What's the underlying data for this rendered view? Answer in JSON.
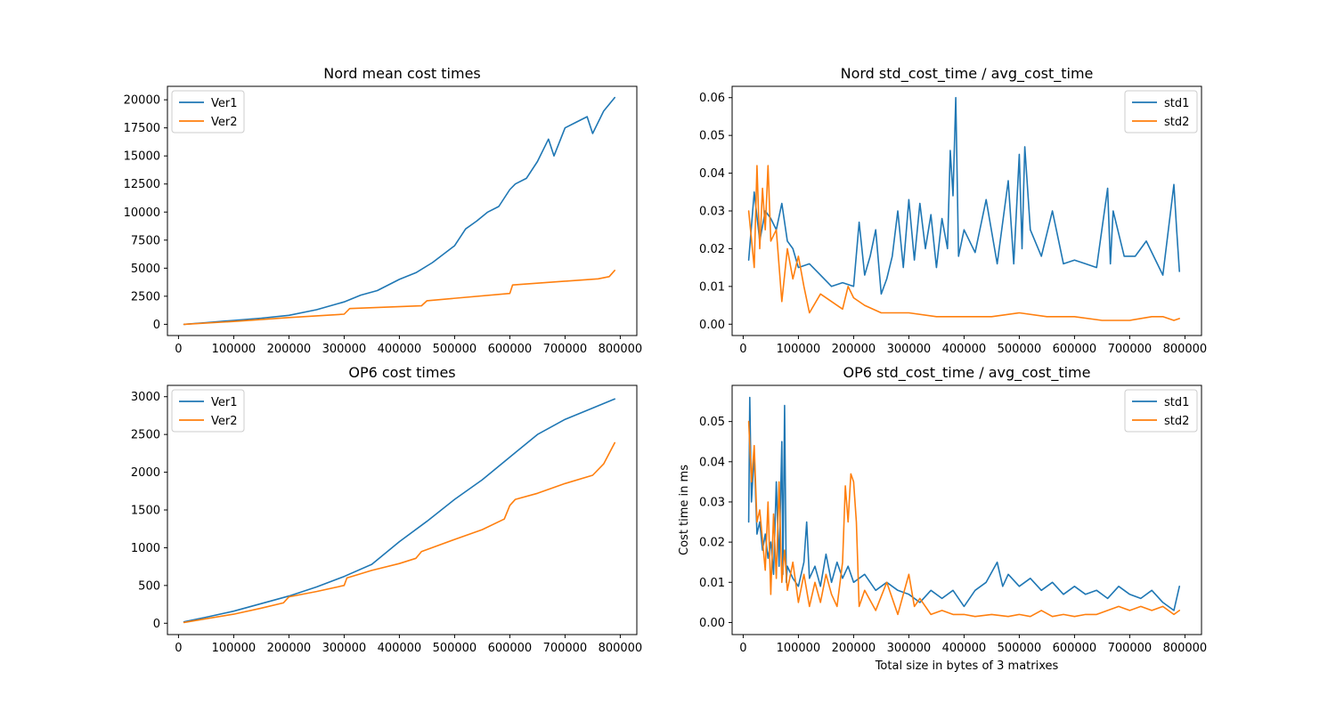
{
  "colors": {
    "series1": "#1f77b4",
    "series2": "#ff7f0e",
    "axis": "#000000",
    "legend_border": "#cccccc"
  },
  "chart_data": [
    {
      "type": "line",
      "title": "Nord mean cost times",
      "xlabel": "",
      "ylabel": "",
      "xlim": [
        -20000,
        830000
      ],
      "ylim": [
        -1000,
        21200
      ],
      "xticks": [
        0,
        100000,
        200000,
        300000,
        400000,
        500000,
        600000,
        700000,
        800000
      ],
      "yticks": [
        0,
        2500,
        5000,
        7500,
        10000,
        12500,
        15000,
        17500,
        20000
      ],
      "xtick_labels": [
        "0",
        "100000",
        "200000",
        "300000",
        "400000",
        "500000",
        "600000",
        "700000",
        "800000"
      ],
      "ytick_labels": [
        "0",
        "2500",
        "5000",
        "7500",
        "10000",
        "12500",
        "15000",
        "17500",
        "20000"
      ],
      "legend": "top-left",
      "grid": false,
      "series": [
        {
          "name": "Ver1",
          "color": "#1f77b4",
          "x": [
            10000,
            50000,
            100000,
            150000,
            200000,
            250000,
            300000,
            330000,
            360000,
            400000,
            430000,
            460000,
            500000,
            520000,
            540000,
            560000,
            580000,
            600000,
            610000,
            630000,
            650000,
            670000,
            680000,
            700000,
            720000,
            740000,
            750000,
            770000,
            790000
          ],
          "y": [
            0,
            150,
            350,
            550,
            800,
            1300,
            2000,
            2600,
            3000,
            4000,
            4600,
            5500,
            7000,
            8500,
            9200,
            10000,
            10500,
            12000,
            12500,
            13000,
            14500,
            16500,
            15000,
            17500,
            18000,
            18500,
            17000,
            19000,
            20200
          ]
        },
        {
          "name": "Ver2",
          "color": "#ff7f0e",
          "x": [
            10000,
            100000,
            200000,
            300000,
            310000,
            440000,
            450000,
            600000,
            605000,
            760000,
            780000,
            790000
          ],
          "y": [
            0,
            250,
            600,
            900,
            1400,
            1650,
            2100,
            2750,
            3500,
            4050,
            4250,
            4800
          ]
        }
      ]
    },
    {
      "type": "line",
      "title": "Nord std_cost_time / avg_cost_time",
      "xlabel": "",
      "ylabel": "",
      "xlim": [
        -20000,
        830000
      ],
      "ylim": [
        -0.003,
        0.063
      ],
      "xticks": [
        0,
        100000,
        200000,
        300000,
        400000,
        500000,
        600000,
        700000,
        800000
      ],
      "yticks": [
        0.0,
        0.01,
        0.02,
        0.03,
        0.04,
        0.05,
        0.06
      ],
      "xtick_labels": [
        "0",
        "100000",
        "200000",
        "300000",
        "400000",
        "500000",
        "600000",
        "700000",
        "800000"
      ],
      "ytick_labels": [
        "0.00",
        "0.01",
        "0.02",
        "0.03",
        "0.04",
        "0.05",
        "0.06"
      ],
      "legend": "top-right",
      "grid": false,
      "series": [
        {
          "name": "std1",
          "color": "#1f77b4",
          "x": [
            10000,
            20000,
            30000,
            40000,
            50000,
            60000,
            70000,
            80000,
            90000,
            100000,
            120000,
            140000,
            160000,
            180000,
            200000,
            210000,
            220000,
            230000,
            240000,
            250000,
            260000,
            270000,
            280000,
            290000,
            300000,
            310000,
            320000,
            330000,
            340000,
            350000,
            360000,
            370000,
            375000,
            380000,
            385000,
            390000,
            400000,
            420000,
            440000,
            460000,
            480000,
            490000,
            500000,
            505000,
            510000,
            520000,
            540000,
            560000,
            580000,
            600000,
            620000,
            640000,
            660000,
            665000,
            670000,
            690000,
            710000,
            730000,
            760000,
            780000,
            785000,
            790000
          ],
          "y": [
            0.017,
            0.035,
            0.022,
            0.03,
            0.028,
            0.025,
            0.032,
            0.022,
            0.02,
            0.015,
            0.016,
            0.013,
            0.01,
            0.011,
            0.01,
            0.027,
            0.013,
            0.018,
            0.025,
            0.008,
            0.012,
            0.018,
            0.03,
            0.015,
            0.033,
            0.017,
            0.032,
            0.02,
            0.029,
            0.015,
            0.028,
            0.02,
            0.046,
            0.034,
            0.06,
            0.018,
            0.025,
            0.019,
            0.033,
            0.016,
            0.038,
            0.016,
            0.045,
            0.02,
            0.047,
            0.025,
            0.018,
            0.03,
            0.016,
            0.017,
            0.016,
            0.015,
            0.036,
            0.016,
            0.03,
            0.018,
            0.018,
            0.022,
            0.013,
            0.037,
            0.025,
            0.014
          ]
        },
        {
          "name": "std2",
          "color": "#ff7f0e",
          "x": [
            10000,
            20000,
            25000,
            30000,
            35000,
            40000,
            45000,
            50000,
            60000,
            70000,
            80000,
            90000,
            100000,
            110000,
            120000,
            140000,
            160000,
            180000,
            190000,
            200000,
            220000,
            250000,
            300000,
            350000,
            400000,
            450000,
            500000,
            550000,
            600000,
            650000,
            700000,
            740000,
            760000,
            780000,
            790000
          ],
          "y": [
            0.03,
            0.015,
            0.042,
            0.02,
            0.036,
            0.025,
            0.042,
            0.022,
            0.025,
            0.006,
            0.02,
            0.012,
            0.018,
            0.01,
            0.003,
            0.008,
            0.006,
            0.004,
            0.01,
            0.007,
            0.005,
            0.003,
            0.003,
            0.002,
            0.002,
            0.002,
            0.003,
            0.002,
            0.002,
            0.001,
            0.001,
            0.002,
            0.002,
            0.001,
            0.0015
          ]
        }
      ]
    },
    {
      "type": "line",
      "title": "OP6 cost times",
      "xlabel": "",
      "ylabel": "",
      "xlim": [
        -20000,
        830000
      ],
      "ylim": [
        -150,
        3150
      ],
      "xticks": [
        0,
        100000,
        200000,
        300000,
        400000,
        500000,
        600000,
        700000,
        800000
      ],
      "yticks": [
        0,
        500,
        1000,
        1500,
        2000,
        2500,
        3000
      ],
      "xtick_labels": [
        "0",
        "100000",
        "200000",
        "300000",
        "400000",
        "500000",
        "600000",
        "700000",
        "800000"
      ],
      "ytick_labels": [
        "0",
        "500",
        "1000",
        "1500",
        "2000",
        "2500",
        "3000"
      ],
      "legend": "top-left",
      "grid": false,
      "series": [
        {
          "name": "Ver1",
          "color": "#1f77b4",
          "x": [
            10000,
            50000,
            100000,
            150000,
            200000,
            250000,
            300000,
            350000,
            400000,
            450000,
            500000,
            550000,
            600000,
            650000,
            700000,
            750000,
            790000
          ],
          "y": [
            20,
            80,
            160,
            260,
            360,
            480,
            620,
            780,
            1080,
            1350,
            1640,
            1900,
            2200,
            2500,
            2700,
            2850,
            2970
          ]
        },
        {
          "name": "Ver2",
          "color": "#ff7f0e",
          "x": [
            10000,
            50000,
            100000,
            150000,
            190000,
            200000,
            250000,
            300000,
            305000,
            350000,
            400000,
            430000,
            440000,
            500000,
            550000,
            590000,
            600000,
            610000,
            650000,
            700000,
            750000,
            770000,
            790000
          ],
          "y": [
            10,
            60,
            120,
            200,
            270,
            350,
            420,
            500,
            600,
            700,
            790,
            860,
            950,
            1110,
            1240,
            1380,
            1560,
            1640,
            1720,
            1850,
            1960,
            2110,
            2390
          ]
        }
      ]
    },
    {
      "type": "line",
      "title": "OP6 std_cost_time / avg_cost_time",
      "xlabel": "Total size in bytes of 3 matrixes",
      "ylabel": "Cost time in ms",
      "xlim": [
        -20000,
        830000
      ],
      "ylim": [
        -0.003,
        0.059
      ],
      "xticks": [
        0,
        100000,
        200000,
        300000,
        400000,
        500000,
        600000,
        700000,
        800000
      ],
      "yticks": [
        0.0,
        0.01,
        0.02,
        0.03,
        0.04,
        0.05
      ],
      "xtick_labels": [
        "0",
        "100000",
        "200000",
        "300000",
        "400000",
        "500000",
        "600000",
        "700000",
        "800000"
      ],
      "ytick_labels": [
        "0.00",
        "0.01",
        "0.02",
        "0.03",
        "0.04",
        "0.05"
      ],
      "legend": "top-right",
      "grid": false,
      "series": [
        {
          "name": "std1",
          "color": "#1f77b4",
          "x": [
            10000,
            12000,
            15000,
            20000,
            25000,
            30000,
            35000,
            40000,
            45000,
            50000,
            55000,
            60000,
            65000,
            70000,
            72000,
            75000,
            78000,
            80000,
            90000,
            100000,
            110000,
            115000,
            120000,
            130000,
            140000,
            150000,
            160000,
            170000,
            180000,
            190000,
            200000,
            220000,
            240000,
            260000,
            280000,
            300000,
            320000,
            340000,
            360000,
            380000,
            400000,
            420000,
            440000,
            460000,
            470000,
            480000,
            500000,
            520000,
            540000,
            560000,
            580000,
            600000,
            620000,
            640000,
            660000,
            680000,
            700000,
            720000,
            740000,
            760000,
            780000,
            790000
          ],
          "y": [
            0.025,
            0.056,
            0.03,
            0.042,
            0.022,
            0.025,
            0.018,
            0.022,
            0.016,
            0.02,
            0.012,
            0.035,
            0.014,
            0.045,
            0.012,
            0.054,
            0.01,
            0.014,
            0.011,
            0.009,
            0.015,
            0.025,
            0.011,
            0.014,
            0.009,
            0.017,
            0.01,
            0.015,
            0.011,
            0.014,
            0.01,
            0.012,
            0.008,
            0.01,
            0.008,
            0.007,
            0.005,
            0.008,
            0.006,
            0.008,
            0.004,
            0.008,
            0.01,
            0.015,
            0.009,
            0.012,
            0.009,
            0.011,
            0.008,
            0.01,
            0.007,
            0.009,
            0.007,
            0.008,
            0.006,
            0.009,
            0.007,
            0.006,
            0.008,
            0.005,
            0.003,
            0.009
          ]
        },
        {
          "name": "std2",
          "color": "#ff7f0e",
          "x": [
            10000,
            15000,
            20000,
            25000,
            30000,
            40000,
            45000,
            50000,
            55000,
            60000,
            65000,
            70000,
            75000,
            80000,
            90000,
            100000,
            110000,
            120000,
            130000,
            140000,
            150000,
            160000,
            170000,
            180000,
            185000,
            190000,
            195000,
            200000,
            205000,
            210000,
            220000,
            240000,
            260000,
            280000,
            300000,
            310000,
            320000,
            340000,
            360000,
            380000,
            400000,
            420000,
            450000,
            480000,
            500000,
            520000,
            540000,
            560000,
            580000,
            600000,
            620000,
            640000,
            660000,
            680000,
            700000,
            720000,
            740000,
            760000,
            780000,
            790000
          ],
          "y": [
            0.05,
            0.035,
            0.044,
            0.025,
            0.028,
            0.013,
            0.03,
            0.007,
            0.027,
            0.011,
            0.035,
            0.01,
            0.018,
            0.008,
            0.015,
            0.005,
            0.012,
            0.004,
            0.01,
            0.005,
            0.012,
            0.007,
            0.004,
            0.015,
            0.034,
            0.025,
            0.037,
            0.035,
            0.025,
            0.004,
            0.008,
            0.003,
            0.01,
            0.002,
            0.012,
            0.004,
            0.006,
            0.002,
            0.003,
            0.002,
            0.002,
            0.0015,
            0.002,
            0.0015,
            0.002,
            0.0015,
            0.003,
            0.0015,
            0.002,
            0.0015,
            0.002,
            0.002,
            0.003,
            0.004,
            0.003,
            0.004,
            0.003,
            0.004,
            0.002,
            0.003
          ]
        }
      ]
    }
  ]
}
